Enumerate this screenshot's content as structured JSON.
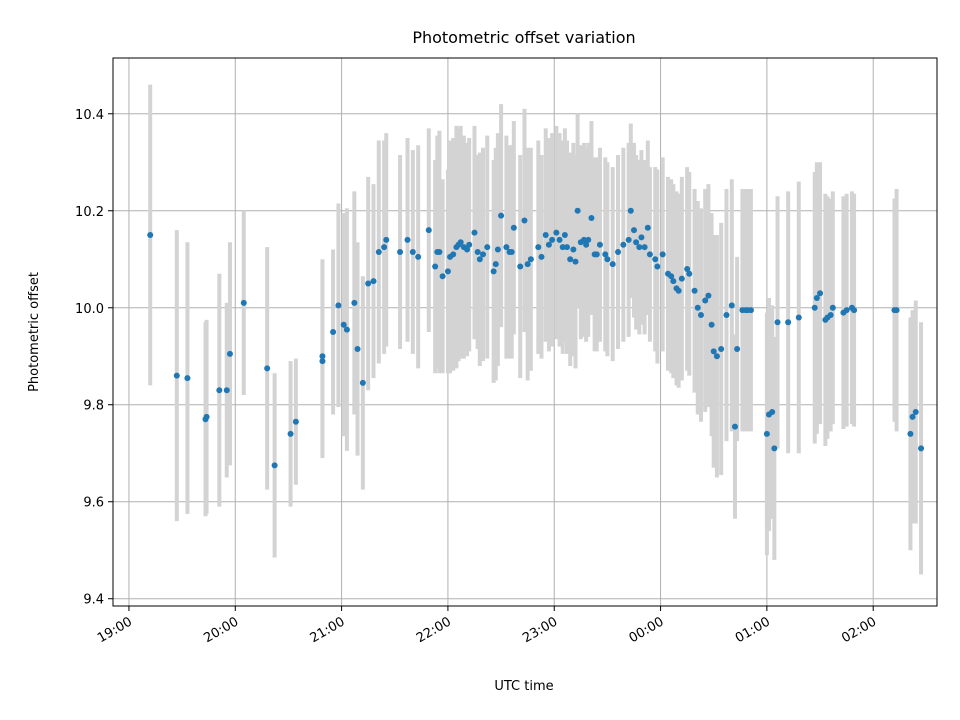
{
  "chart_data": {
    "type": "scatter",
    "title": "Photometric offset variation",
    "xlabel": "UTC time",
    "ylabel": "Photometric offset",
    "x_ticks": [
      "19:00",
      "20:00",
      "21:00",
      "22:00",
      "23:00",
      "00:00",
      "01:00",
      "02:00"
    ],
    "x_tick_hours": [
      0,
      1,
      2,
      3,
      4,
      5,
      6,
      7
    ],
    "x_unit": "hours since 19:00 UTC",
    "xlim": [
      -0.15,
      7.6
    ],
    "y_ticks": [
      9.4,
      9.6,
      9.8,
      10.0,
      10.2,
      10.4
    ],
    "ylim": [
      9.385,
      10.515
    ],
    "grid": true,
    "colors": {
      "point": "#1f77b4",
      "errorbar": "#d3d3d3",
      "grid": "#b0b0b0"
    },
    "series": [
      {
        "values_x_hours": [
          0.2,
          0.45,
          0.55,
          0.72,
          0.73,
          0.85,
          0.92,
          0.95,
          1.08,
          1.3,
          1.37,
          1.52,
          1.57,
          1.82,
          1.82,
          1.92,
          1.97,
          2.02,
          2.05,
          2.12,
          2.15,
          2.2,
          2.25,
          2.3,
          2.35,
          2.4,
          2.42,
          2.55,
          2.62,
          2.67,
          2.72,
          2.82,
          2.88,
          2.9,
          2.92,
          2.95,
          3,
          3.02,
          3.05,
          3.08,
          3.1,
          3.12,
          3.15,
          3.18,
          3.2,
          3.25,
          3.28,
          3.3,
          3.33,
          3.37,
          3.43,
          3.45,
          3.47,
          3.5,
          3.55,
          3.58,
          3.6,
          3.62,
          3.68,
          3.72,
          3.75,
          3.78,
          3.85,
          3.88,
          3.92,
          3.95,
          3.98,
          4.02,
          4.05,
          4.08,
          4.1,
          4.12,
          4.15,
          4.18,
          4.2,
          4.22,
          4.25,
          4.28,
          4.3,
          4.32,
          4.35,
          4.38,
          4.4,
          4.43,
          4.48,
          4.5,
          4.55,
          4.6,
          4.65,
          4.7,
          4.72,
          4.75,
          4.77,
          4.8,
          4.82,
          4.85,
          4.88,
          4.9,
          4.95,
          4.97,
          5.02,
          5.07,
          5.1,
          5.12,
          5.15,
          5.17,
          5.2,
          5.25,
          5.27,
          5.32,
          5.35,
          5.38,
          5.42,
          5.45,
          5.48,
          5.5,
          5.53,
          5.57,
          5.62,
          5.67,
          5.7,
          5.72,
          5.77,
          5.8,
          5.82,
          5.85,
          6,
          6.02,
          6.05,
          6.07,
          6.1,
          6.2,
          6.3,
          6.45,
          6.47,
          6.5,
          6.55,
          6.57,
          6.6,
          6.62,
          6.72,
          6.75,
          6.8,
          6.82,
          7.2,
          7.22,
          7.35,
          7.37,
          7.4,
          7.45
        ],
        "values_y": [
          10.15,
          9.86,
          9.855,
          9.77,
          9.775,
          9.83,
          9.83,
          9.905,
          10.01,
          9.875,
          9.675,
          9.74,
          9.765,
          9.89,
          9.9,
          9.95,
          10.005,
          9.965,
          9.955,
          10.01,
          9.915,
          9.845,
          10.05,
          10.055,
          10.115,
          10.125,
          10.14,
          10.115,
          10.14,
          10.115,
          10.105,
          10.16,
          10.085,
          10.115,
          10.115,
          10.065,
          10.075,
          10.105,
          10.11,
          10.125,
          10.13,
          10.135,
          10.125,
          10.12,
          10.13,
          10.155,
          10.115,
          10.1,
          10.11,
          10.125,
          10.075,
          10.09,
          10.12,
          10.19,
          10.125,
          10.115,
          10.115,
          10.165,
          10.085,
          10.18,
          10.09,
          10.1,
          10.125,
          10.105,
          10.15,
          10.13,
          10.14,
          10.155,
          10.14,
          10.125,
          10.15,
          10.125,
          10.1,
          10.12,
          10.095,
          10.2,
          10.135,
          10.14,
          10.13,
          10.14,
          10.185,
          10.11,
          10.11,
          10.13,
          10.11,
          10.1,
          10.09,
          10.115,
          10.13,
          10.14,
          10.2,
          10.16,
          10.135,
          10.125,
          10.145,
          10.125,
          10.165,
          10.11,
          10.1,
          10.085,
          10.11,
          10.07,
          10.065,
          10.055,
          10.04,
          10.035,
          10.06,
          10.08,
          10.07,
          10.035,
          10.0,
          9.985,
          10.015,
          10.025,
          9.965,
          9.91,
          9.9,
          9.915,
          9.985,
          10.005,
          9.755,
          9.915,
          9.995,
          9.995,
          9.995,
          9.995,
          9.74,
          9.78,
          9.785,
          9.71,
          9.97,
          9.97,
          9.98,
          10.0,
          10.02,
          10.03,
          9.975,
          9.98,
          9.985,
          10.0,
          9.99,
          9.995,
          10.0,
          9.995,
          9.995,
          9.995,
          9.74,
          9.775,
          9.785,
          9.71
        ],
        "errors_y": [
          0.31,
          0.3,
          0.28,
          0.2,
          0.2,
          0.24,
          0.18,
          0.23,
          0.19,
          0.25,
          0.19,
          0.15,
          0.13,
          0.2,
          0.2,
          0.17,
          0.21,
          0.23,
          0.25,
          0.23,
          0.22,
          0.22,
          0.22,
          0.2,
          0.23,
          0.22,
          0.22,
          0.2,
          0.21,
          0.21,
          0.23,
          0.21,
          0.22,
          0.24,
          0.25,
          0.2,
          0.21,
          0.24,
          0.24,
          0.25,
          0.24,
          0.24,
          0.23,
          0.22,
          0.22,
          0.22,
          0.2,
          0.22,
          0.22,
          0.23,
          0.23,
          0.24,
          0.24,
          0.23,
          0.23,
          0.22,
          0.22,
          0.22,
          0.23,
          0.23,
          0.24,
          0.23,
          0.22,
          0.21,
          0.22,
          0.22,
          0.22,
          0.22,
          0.22,
          0.22,
          0.22,
          0.22,
          0.22,
          0.22,
          0.22,
          0.2,
          0.2,
          0.2,
          0.2,
          0.2,
          0.2,
          0.2,
          0.2,
          0.2,
          0.2,
          0.2,
          0.2,
          0.2,
          0.2,
          0.2,
          0.18,
          0.18,
          0.18,
          0.18,
          0.18,
          0.18,
          0.18,
          0.18,
          0.19,
          0.2,
          0.2,
          0.2,
          0.2,
          0.2,
          0.2,
          0.2,
          0.21,
          0.21,
          0.21,
          0.21,
          0.22,
          0.22,
          0.23,
          0.23,
          0.23,
          0.24,
          0.25,
          0.26,
          0.26,
          0.26,
          0.19,
          0.19,
          0.25,
          0.25,
          0.25,
          0.25,
          0.25,
          0.24,
          0.22,
          0.23,
          0.26,
          0.27,
          0.28,
          0.28,
          0.28,
          0.27,
          0.26,
          0.25,
          0.24,
          0.24,
          0.24,
          0.24,
          0.24,
          0.24,
          0.23,
          0.25,
          0.24,
          0.22,
          0.23,
          0.26
        ]
      }
    ]
  }
}
